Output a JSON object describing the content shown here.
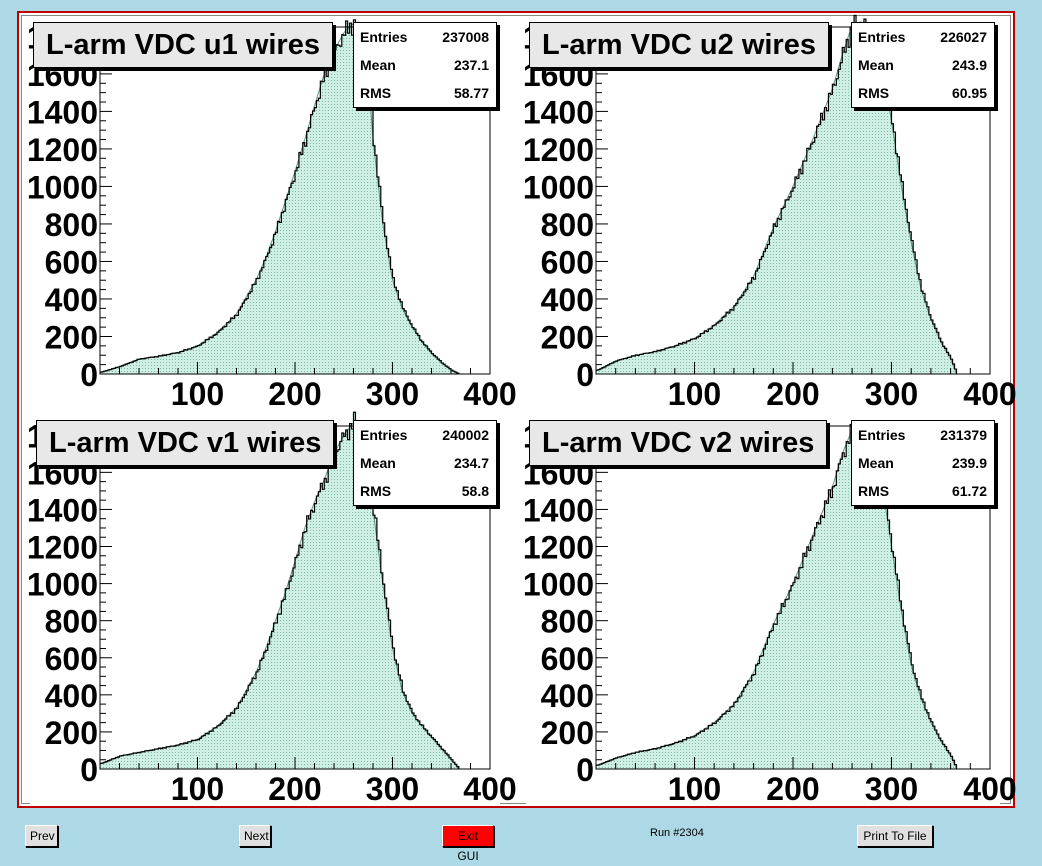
{
  "colors": {
    "background": "#add8e6",
    "canvas_border": "#c00000",
    "hist_fill": "#cfeee4",
    "hist_hatch": "#7fb8a8",
    "hist_line": "#000000",
    "hist_overlay": "#5a9a7a",
    "exit_button": "#ff0000"
  },
  "footer": {
    "prev_label": "Prev",
    "next_label": "Next",
    "exit_label": "Exit GUI",
    "run_label": "Run #2304",
    "print_label": "Print To File"
  },
  "chart_data": [
    {
      "type": "area",
      "title": "L-arm VDC u1 wires",
      "stats": {
        "entries_label": "Entries",
        "entries": "237008",
        "mean_label": "Mean",
        "mean": "237.1",
        "rms_label": "RMS",
        "rms": "58.77"
      },
      "xlim": [
        0,
        400
      ],
      "ylim": [
        0,
        1850
      ],
      "x_ticks": [
        "100",
        "200",
        "300",
        "400"
      ],
      "y_ticks": [
        "0",
        "200",
        "400",
        "600",
        "800",
        "1000",
        "1200",
        "1400",
        "1600",
        "1800"
      ],
      "x": [
        1,
        20,
        40,
        60,
        80,
        100,
        120,
        140,
        160,
        170,
        180,
        190,
        200,
        210,
        220,
        230,
        240,
        250,
        260,
        270,
        275,
        280,
        290,
        300,
        310,
        320,
        330,
        340,
        350,
        360,
        368
      ],
      "values": [
        10,
        40,
        80,
        95,
        115,
        150,
        220,
        320,
        500,
        620,
        760,
        920,
        1080,
        1250,
        1430,
        1600,
        1720,
        1820,
        1870,
        1790,
        1600,
        1250,
        800,
        500,
        350,
        250,
        170,
        110,
        60,
        20,
        0
      ]
    },
    {
      "type": "area",
      "title": "L-arm VDC u2 wires",
      "stats": {
        "entries_label": "Entries",
        "entries": "226027",
        "mean_label": "Mean",
        "mean": "243.9",
        "rms_label": "RMS",
        "rms": "60.95"
      },
      "xlim": [
        0,
        400
      ],
      "ylim": [
        0,
        1850
      ],
      "x_ticks": [
        "100",
        "200",
        "300",
        "400"
      ],
      "y_ticks": [
        "0",
        "200",
        "400",
        "600",
        "800",
        "1000",
        "1200",
        "1400",
        "1600",
        "1800"
      ],
      "x": [
        1,
        20,
        40,
        60,
        80,
        100,
        120,
        140,
        160,
        180,
        200,
        220,
        240,
        250,
        260,
        270,
        280,
        290,
        300,
        310,
        320,
        330,
        340,
        350,
        360,
        366
      ],
      "values": [
        20,
        70,
        100,
        120,
        150,
        190,
        260,
        360,
        520,
        780,
        1000,
        1250,
        1520,
        1700,
        1860,
        1880,
        1800,
        1650,
        1350,
        1000,
        700,
        450,
        290,
        170,
        80,
        0
      ]
    },
    {
      "type": "area",
      "title": "L-arm VDC v1 wires",
      "stats": {
        "entries_label": "Entries",
        "entries": "240002",
        "mean_label": "Mean",
        "mean": "234.7",
        "rms_label": "RMS",
        "rms": "58.8"
      },
      "xlim": [
        0,
        400
      ],
      "ylim": [
        0,
        1850
      ],
      "x_ticks": [
        "100",
        "200",
        "300",
        "400"
      ],
      "y_ticks": [
        "0",
        "200",
        "400",
        "600",
        "800",
        "1000",
        "1200",
        "1400",
        "1600",
        "1800"
      ],
      "x": [
        1,
        20,
        40,
        60,
        80,
        100,
        120,
        140,
        160,
        170,
        180,
        190,
        200,
        210,
        220,
        230,
        240,
        250,
        260,
        270,
        280,
        290,
        300,
        310,
        320,
        330,
        340,
        350,
        360,
        368
      ],
      "values": [
        30,
        70,
        90,
        110,
        130,
        160,
        230,
        330,
        520,
        650,
        800,
        950,
        1120,
        1300,
        1440,
        1560,
        1700,
        1800,
        1870,
        1750,
        1400,
        1000,
        650,
        420,
        300,
        230,
        170,
        110,
        50,
        0
      ]
    },
    {
      "type": "area",
      "title": "L-arm VDC v2 wires",
      "stats": {
        "entries_label": "Entries",
        "entries": "231379",
        "mean_label": "Mean",
        "mean": "239.9",
        "rms_label": "RMS",
        "rms": "61.72"
      },
      "xlim": [
        0,
        400
      ],
      "ylim": [
        0,
        1850
      ],
      "x_ticks": [
        "100",
        "200",
        "300",
        "400"
      ],
      "y_ticks": [
        "0",
        "200",
        "400",
        "600",
        "800",
        "1000",
        "1200",
        "1400",
        "1600",
        "1800"
      ],
      "x": [
        1,
        20,
        40,
        60,
        80,
        100,
        120,
        140,
        160,
        180,
        200,
        220,
        240,
        250,
        260,
        270,
        280,
        290,
        300,
        310,
        320,
        330,
        340,
        350,
        360,
        366
      ],
      "values": [
        20,
        60,
        90,
        110,
        140,
        180,
        250,
        350,
        520,
        780,
        1000,
        1260,
        1520,
        1700,
        1830,
        1850,
        1760,
        1550,
        1200,
        850,
        560,
        380,
        250,
        150,
        70,
        0
      ]
    }
  ]
}
